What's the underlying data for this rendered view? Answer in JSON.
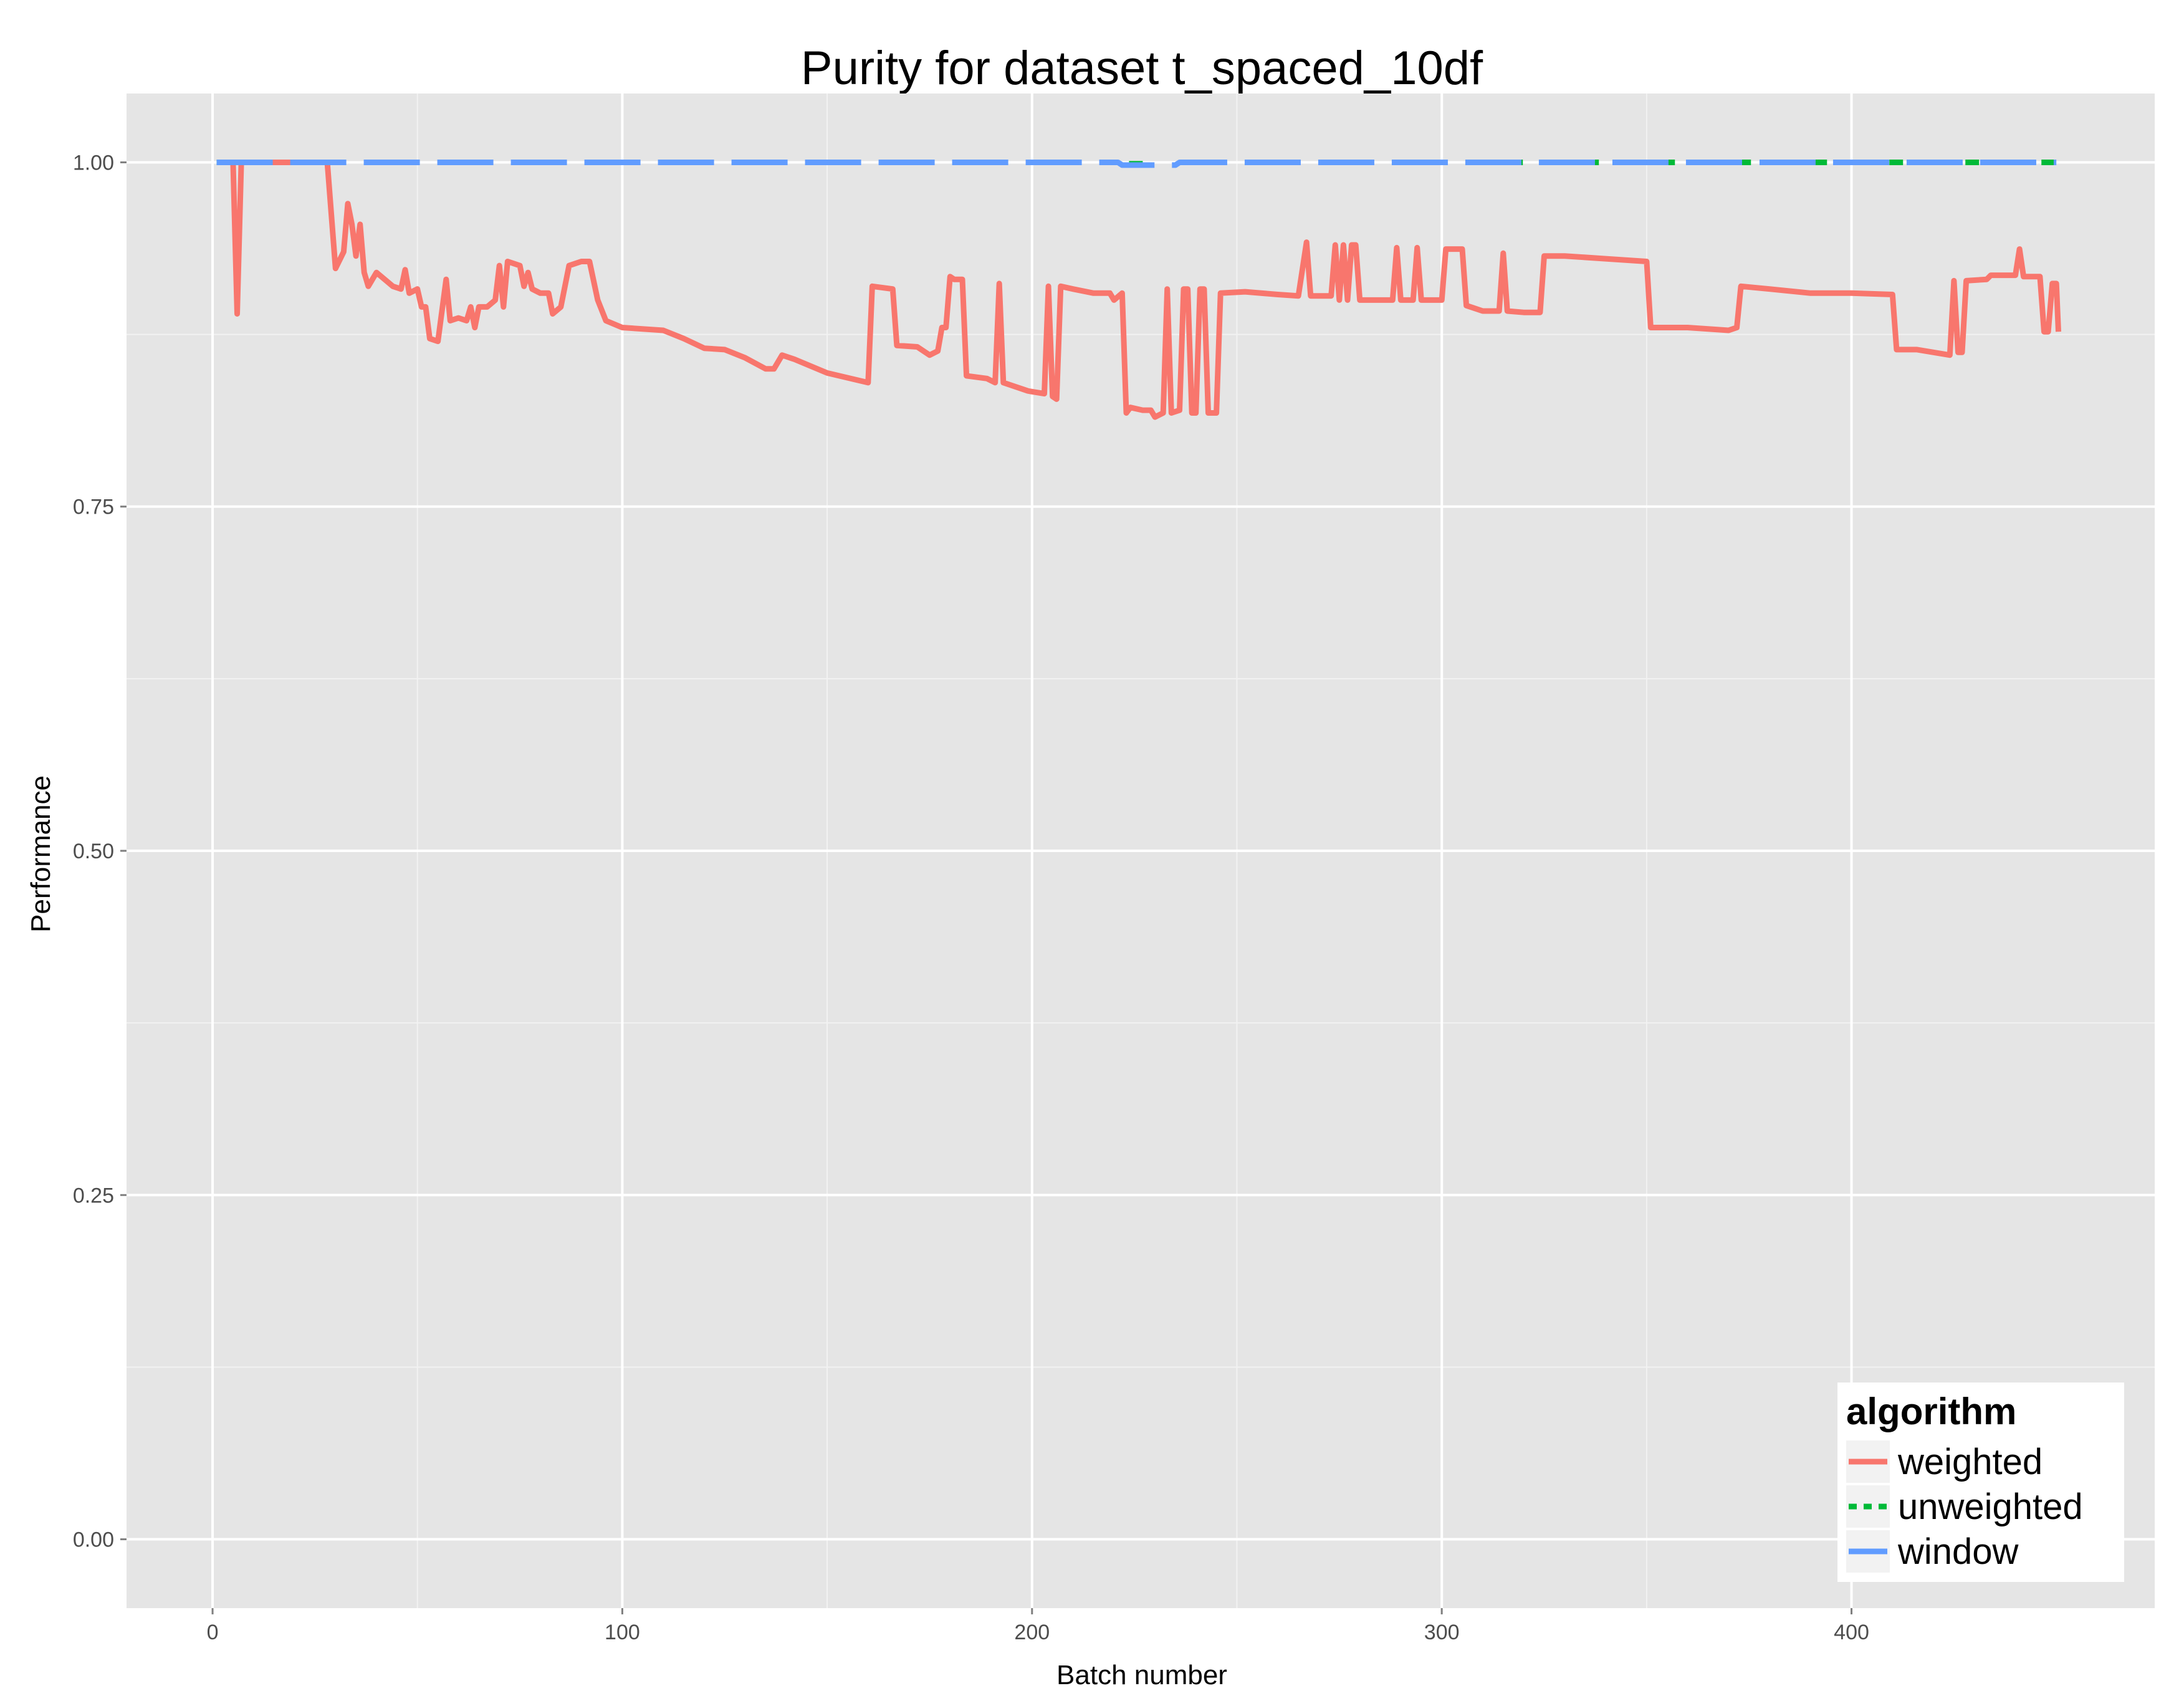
{
  "chart_data": {
    "type": "line",
    "title": "Purity for dataset t_spaced_10df",
    "xlabel": "Batch number",
    "ylabel": "Performance",
    "xlim": [
      -21,
      474
    ],
    "ylim": [
      -0.05,
      1.05
    ],
    "x_ticks": [
      0,
      100,
      200,
      300,
      400
    ],
    "x_tick_labels": [
      "0",
      "100",
      "200",
      "300",
      "400"
    ],
    "y_ticks": [
      0,
      0.25,
      0.5,
      0.75,
      1
    ],
    "y_tick_labels": [
      "0.00",
      "0.25",
      "0.50",
      "0.75",
      "1.00"
    ],
    "grid": true,
    "background": "#e5e5e5",
    "legend": {
      "title": "algorithm",
      "position": "bottom-right",
      "entries": [
        "weighted",
        "unweighted",
        "window"
      ]
    },
    "series": [
      {
        "name": "weighted",
        "color": "#f8766d",
        "dash": "solid",
        "points": [
          [
            1,
            1.0
          ],
          [
            5,
            1.0
          ],
          [
            6,
            0.89
          ],
          [
            7,
            1.0
          ],
          [
            28,
            1.0
          ],
          [
            30,
            0.923
          ],
          [
            32,
            0.935
          ],
          [
            33,
            0.97
          ],
          [
            34,
            0.955
          ],
          [
            35,
            0.932
          ],
          [
            36,
            0.955
          ],
          [
            37,
            0.92
          ],
          [
            38,
            0.91
          ],
          [
            40,
            0.92
          ],
          [
            42,
            0.915
          ],
          [
            44,
            0.91
          ],
          [
            46,
            0.908
          ],
          [
            47,
            0.922
          ],
          [
            48,
            0.905
          ],
          [
            50,
            0.908
          ],
          [
            51,
            0.895
          ],
          [
            52,
            0.895
          ],
          [
            53,
            0.872
          ],
          [
            55,
            0.87
          ],
          [
            57,
            0.915
          ],
          [
            58,
            0.885
          ],
          [
            60,
            0.887
          ],
          [
            62,
            0.885
          ],
          [
            63,
            0.895
          ],
          [
            64,
            0.88
          ],
          [
            65,
            0.895
          ],
          [
            67,
            0.895
          ],
          [
            69,
            0.9
          ],
          [
            70,
            0.925
          ],
          [
            71,
            0.895
          ],
          [
            72,
            0.928
          ],
          [
            75,
            0.925
          ],
          [
            76,
            0.91
          ],
          [
            77,
            0.92
          ],
          [
            78,
            0.908
          ],
          [
            80,
            0.905
          ],
          [
            82,
            0.905
          ],
          [
            83,
            0.89
          ],
          [
            85,
            0.895
          ],
          [
            87,
            0.925
          ],
          [
            90,
            0.928
          ],
          [
            92,
            0.928
          ],
          [
            94,
            0.9
          ],
          [
            96,
            0.885
          ],
          [
            100,
            0.88
          ],
          [
            110,
            0.878
          ],
          [
            115,
            0.872
          ],
          [
            120,
            0.865
          ],
          [
            125,
            0.864
          ],
          [
            130,
            0.858
          ],
          [
            135,
            0.85
          ],
          [
            137,
            0.85
          ],
          [
            139,
            0.86
          ],
          [
            142,
            0.857
          ],
          [
            150,
            0.847
          ],
          [
            160,
            0.84
          ],
          [
            161,
            0.91
          ],
          [
            166,
            0.908
          ],
          [
            167,
            0.867
          ],
          [
            172,
            0.866
          ],
          [
            175,
            0.86
          ],
          [
            177,
            0.863
          ],
          [
            178,
            0.88
          ],
          [
            179,
            0.88
          ],
          [
            180,
            0.917
          ],
          [
            181,
            0.915
          ],
          [
            183,
            0.915
          ],
          [
            184,
            0.845
          ],
          [
            189,
            0.843
          ],
          [
            191,
            0.84
          ],
          [
            192,
            0.912
          ],
          [
            193,
            0.84
          ],
          [
            199,
            0.834
          ],
          [
            203,
            0.832
          ],
          [
            204,
            0.91
          ],
          [
            205,
            0.83
          ],
          [
            206,
            0.828
          ],
          [
            207,
            0.91
          ],
          [
            210,
            0.908
          ],
          [
            215,
            0.905
          ],
          [
            219,
            0.905
          ],
          [
            220,
            0.9
          ],
          [
            222,
            0.905
          ],
          [
            223,
            0.818
          ],
          [
            224,
            0.822
          ],
          [
            227,
            0.82
          ],
          [
            229,
            0.82
          ],
          [
            230,
            0.815
          ],
          [
            232,
            0.818
          ],
          [
            233,
            0.908
          ],
          [
            234,
            0.818
          ],
          [
            236,
            0.82
          ],
          [
            237,
            0.908
          ],
          [
            238,
            0.908
          ],
          [
            239,
            0.818
          ],
          [
            240,
            0.818
          ],
          [
            241,
            0.908
          ],
          [
            242,
            0.908
          ],
          [
            243,
            0.818
          ],
          [
            245,
            0.818
          ],
          [
            246,
            0.905
          ],
          [
            252,
            0.906
          ],
          [
            260,
            0.904
          ],
          [
            265,
            0.903
          ],
          [
            267,
            0.942
          ],
          [
            268,
            0.903
          ],
          [
            273,
            0.903
          ],
          [
            274,
            0.94
          ],
          [
            275,
            0.9
          ],
          [
            276,
            0.94
          ],
          [
            277,
            0.9
          ],
          [
            278,
            0.94
          ],
          [
            279,
            0.94
          ],
          [
            280,
            0.9
          ],
          [
            288,
            0.9
          ],
          [
            289,
            0.938
          ],
          [
            290,
            0.9
          ],
          [
            293,
            0.9
          ],
          [
            294,
            0.938
          ],
          [
            295,
            0.9
          ],
          [
            300,
            0.9
          ],
          [
            301,
            0.937
          ],
          [
            305,
            0.937
          ],
          [
            306,
            0.896
          ],
          [
            310,
            0.892
          ],
          [
            314,
            0.892
          ],
          [
            315,
            0.934
          ],
          [
            316,
            0.892
          ],
          [
            320,
            0.891
          ],
          [
            324,
            0.891
          ],
          [
            325,
            0.932
          ],
          [
            330,
            0.932
          ],
          [
            340,
            0.93
          ],
          [
            350,
            0.928
          ],
          [
            351,
            0.88
          ],
          [
            360,
            0.88
          ],
          [
            370,
            0.878
          ],
          [
            372,
            0.88
          ],
          [
            373,
            0.91
          ],
          [
            380,
            0.908
          ],
          [
            390,
            0.905
          ],
          [
            400,
            0.905
          ],
          [
            410,
            0.904
          ],
          [
            411,
            0.864
          ],
          [
            416,
            0.864
          ],
          [
            420,
            0.862
          ],
          [
            424,
            0.86
          ],
          [
            425,
            0.914
          ],
          [
            426,
            0.862
          ],
          [
            427,
            0.862
          ],
          [
            428,
            0.914
          ],
          [
            433,
            0.915
          ],
          [
            434,
            0.918
          ],
          [
            437,
            0.918
          ],
          [
            440,
            0.918
          ],
          [
            441,
            0.937
          ],
          [
            442,
            0.917
          ],
          [
            446,
            0.917
          ],
          [
            447,
            0.877
          ],
          [
            448,
            0.877
          ],
          [
            449,
            0.912
          ],
          [
            450,
            0.912
          ],
          [
            450.5,
            0.877
          ]
        ]
      },
      {
        "name": "unweighted",
        "color": "#00ba38",
        "dash": "dotted",
        "points": [
          [
            1,
            1.0
          ],
          [
            220,
            1.0
          ],
          [
            222,
            0.999
          ],
          [
            232,
            0.999
          ],
          [
            234,
            1.0
          ],
          [
            450,
            1.0
          ]
        ]
      },
      {
        "name": "window",
        "color": "#619cff",
        "dash": "dashed",
        "points": [
          [
            1,
            1.0
          ],
          [
            221,
            1.0
          ],
          [
            222,
            0.998
          ],
          [
            235,
            0.998
          ],
          [
            236,
            1.0
          ],
          [
            450,
            1.0
          ]
        ]
      }
    ]
  }
}
